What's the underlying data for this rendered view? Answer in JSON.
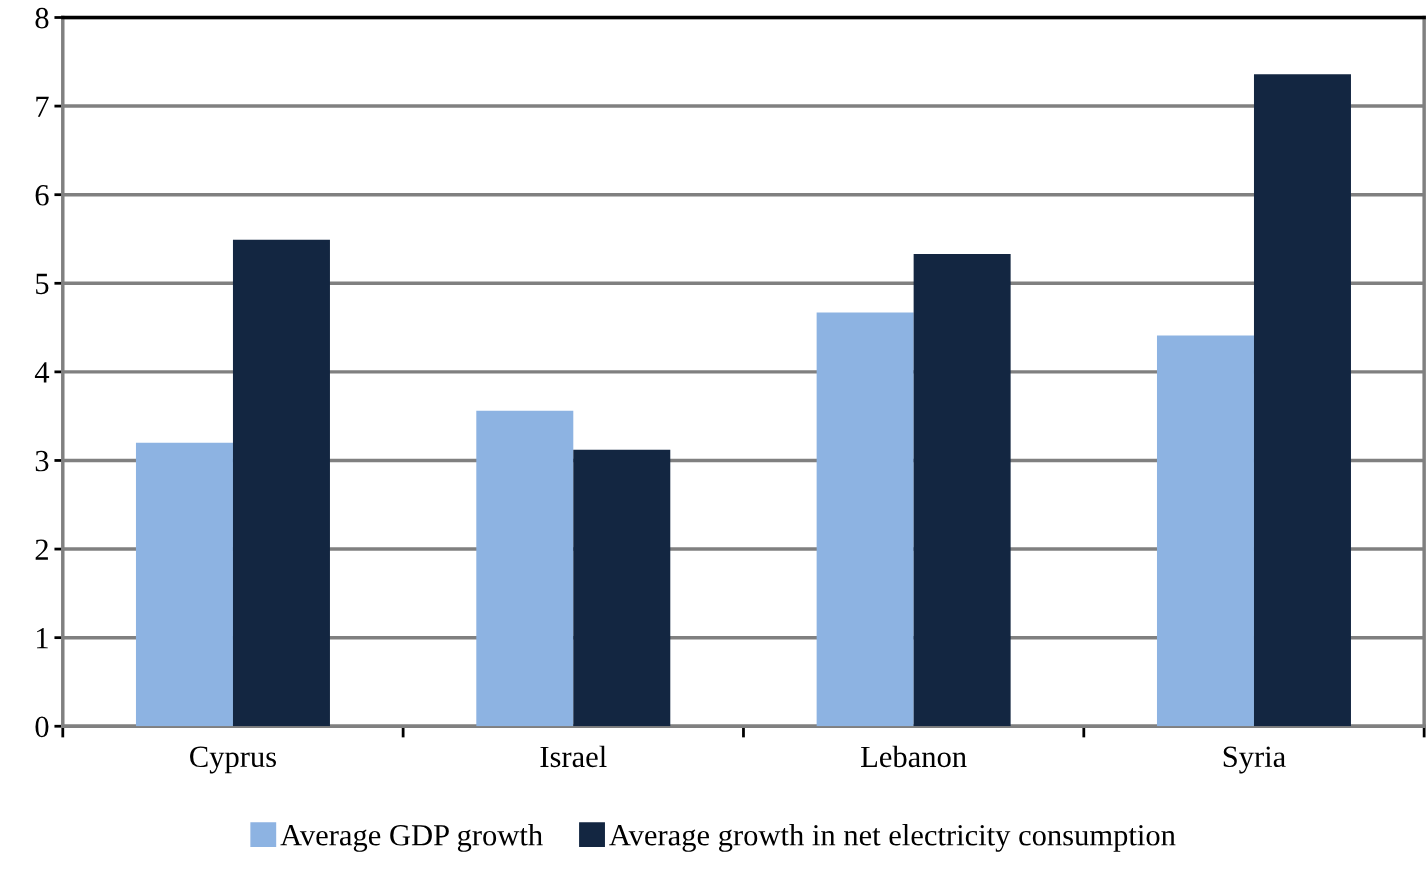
{
  "chart_data": {
    "type": "bar",
    "categories": [
      "Cyprus",
      "Israel",
      "Lebanon",
      "Syria"
    ],
    "series": [
      {
        "name": "Average GDP growth",
        "color": "#8db3e2",
        "values": [
          3.2,
          3.56,
          4.67,
          4.41
        ]
      },
      {
        "name": "Average growth in net electricity consumption",
        "color": "#132641",
        "values": [
          5.49,
          3.12,
          5.33,
          7.36
        ]
      }
    ],
    "ylim": [
      0,
      8
    ],
    "yticks": [
      0,
      1,
      2,
      3,
      4,
      5,
      6,
      7,
      8
    ],
    "grid": "y",
    "legend": "bottom"
  }
}
